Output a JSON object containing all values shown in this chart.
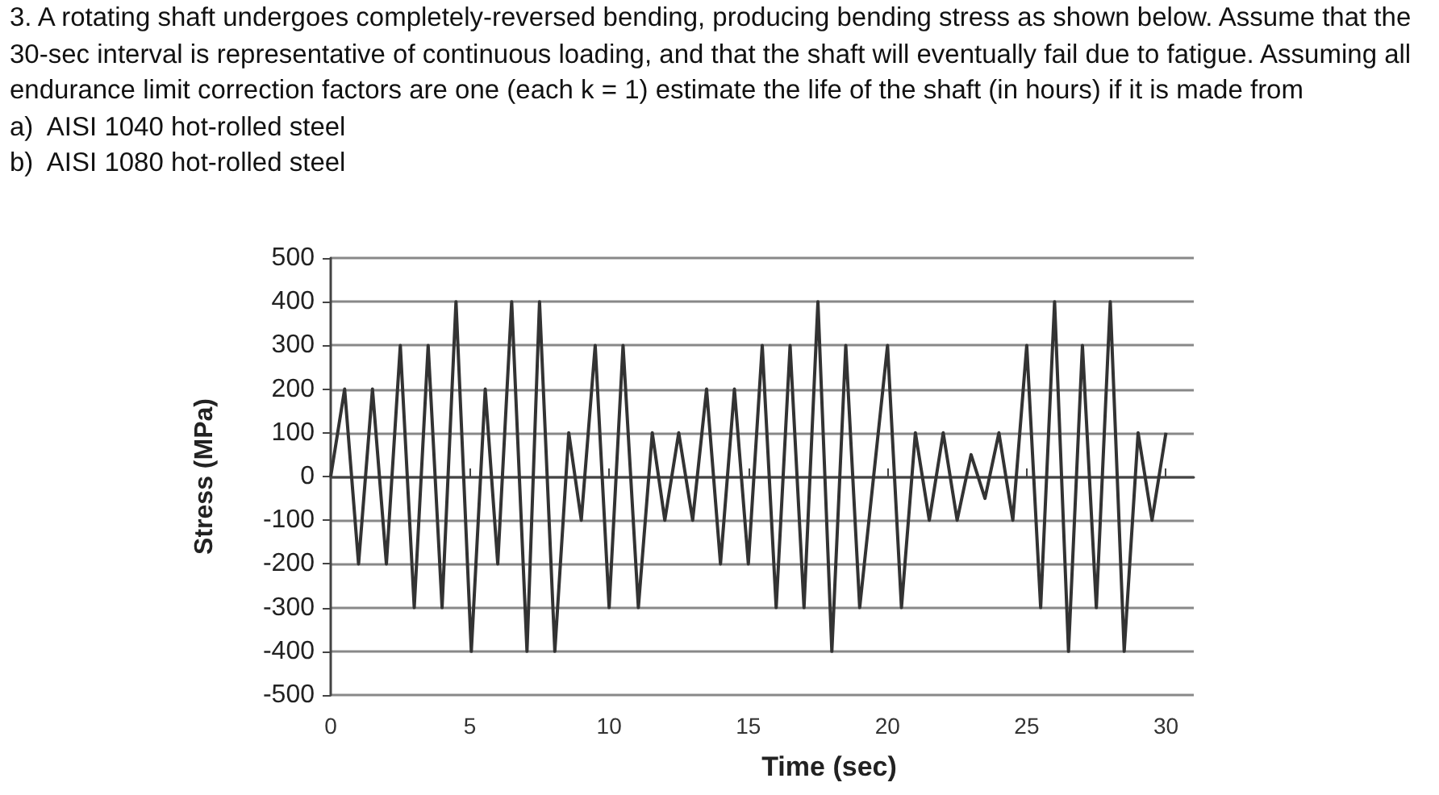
{
  "chart_data": {
    "type": "line",
    "title": "3. A rotating shaft undergoes completely-reversed bending, producing bending stress as shown below. Assume that the 30-sec interval is representative of continuous loading, and that the shaft will eventually fail due to fatigue. Assuming all endurance limit correction factors are one (each k = 1) estimate the life of the shaft (in hours) if it is made from",
    "annotations": [
      "a)  AISI 1040 hot-rolled steel",
      "b)  AISI 1080 hot-rolled steel"
    ],
    "xlabel": "Time (sec)",
    "ylabel": "Stress (MPa)",
    "x": [
      0,
      0.5,
      1,
      1.5,
      2,
      2.5,
      3,
      3.5,
      4,
      4.5,
      5.05,
      5.55,
      6,
      6.5,
      7.05,
      7.5,
      8.05,
      8.55,
      9,
      9.5,
      10,
      10.5,
      11.05,
      11.55,
      12,
      12.5,
      13,
      13.5,
      14,
      14.5,
      15,
      15.5,
      16,
      16.5,
      17,
      17.5,
      18,
      18.5,
      19,
      20,
      20.5,
      21,
      21.5,
      22,
      22.5,
      23,
      23.5,
      24,
      24.5,
      25,
      25.5,
      26,
      26.5,
      27,
      27.5,
      28,
      28.5,
      29,
      29.5,
      30
    ],
    "series": [
      {
        "color": "#333333",
        "values": [
          0,
          200,
          -200,
          200,
          -200,
          300,
          -300,
          300,
          -300,
          400,
          -400,
          200,
          -200,
          400,
          -400,
          400,
          -400,
          100,
          -100,
          300,
          -300,
          300,
          -300,
          100,
          -100,
          100,
          -100,
          200,
          -200,
          200,
          -200,
          300,
          -300,
          300,
          -300,
          400,
          -400,
          300,
          -300,
          300,
          -300,
          100,
          -100,
          100,
          -100,
          50,
          -50,
          100,
          -100,
          300,
          -300,
          400,
          -400,
          300,
          -300,
          400,
          -400,
          100,
          -100,
          100
        ]
      }
    ],
    "xlim": [
      0,
      31
    ],
    "xticks": [
      0,
      5,
      10,
      15,
      20,
      25,
      30
    ],
    "ylim": [
      -500,
      500
    ],
    "yticks": [
      -500,
      -400,
      -300,
      -200,
      -100,
      0,
      100,
      200,
      300,
      400,
      500
    ],
    "grid": "y",
    "marker": "none"
  }
}
